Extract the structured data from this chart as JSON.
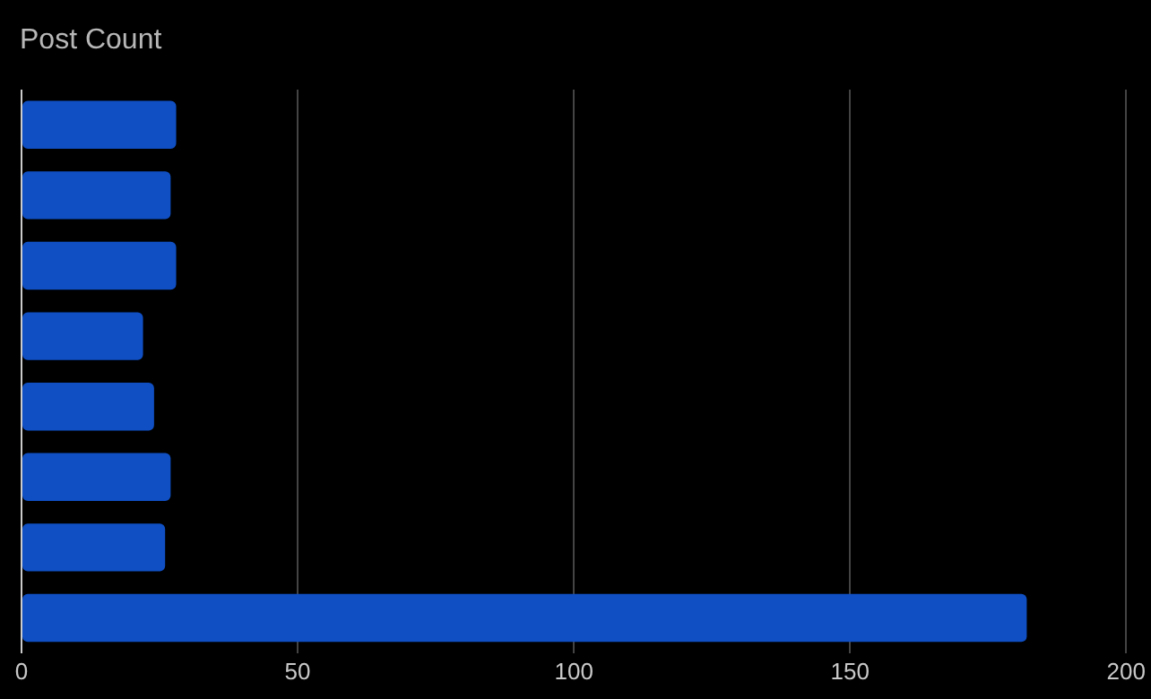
{
  "chart_data": {
    "type": "bar",
    "orientation": "horizontal",
    "title": "Post Count",
    "categories": [
      null,
      null,
      null,
      null,
      null,
      null,
      null,
      null
    ],
    "values": [
      28,
      27,
      28,
      22,
      24,
      27,
      26,
      182
    ],
    "color": "#0f4fc3",
    "xlim": [
      0,
      200
    ],
    "xticks": [
      0,
      50,
      100,
      150,
      200
    ],
    "grid": "x",
    "legend": false
  }
}
